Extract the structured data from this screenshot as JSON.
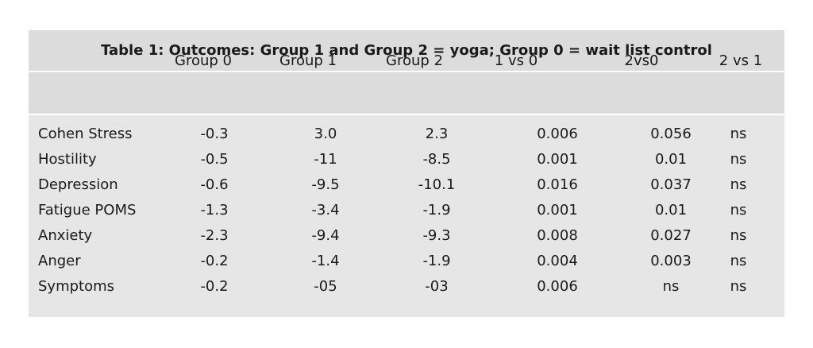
{
  "title": "Table 1: Outcomes: Group 1 and Group 2 = yoga; Group 0 = wait list control",
  "columns": [
    "",
    "Group 0",
    "Group 1",
    "Group 2",
    "1 vs 0",
    "2vs0",
    "2 vs 1"
  ],
  "rows": [
    [
      "Cohen Stress",
      "-0.3",
      "3.0",
      "2.3",
      "0.006",
      "0.056",
      "ns"
    ],
    [
      "Hostility",
      "-0.5",
      "-11",
      "-8.5",
      "0.001",
      "0.01",
      "ns"
    ],
    [
      "Depression",
      "-0.6",
      "-9.5",
      "-10.1",
      "0.016",
      "0.037",
      "ns"
    ],
    [
      "Fatigue POMS",
      "-1.3",
      "-3.4",
      "-1.9",
      "0.001",
      "0.01",
      "ns"
    ],
    [
      "Anxiety",
      "-2.3",
      "-9.4",
      "-9.3",
      "0.008",
      "0.027",
      "ns"
    ],
    [
      "Anger",
      "-0.2",
      "-1.4",
      "-1.9",
      "0.004",
      "0.003",
      "ns"
    ],
    [
      "Symptoms",
      "-0.2",
      "-05",
      "-03",
      "0.006",
      "ns",
      "ns"
    ]
  ]
}
